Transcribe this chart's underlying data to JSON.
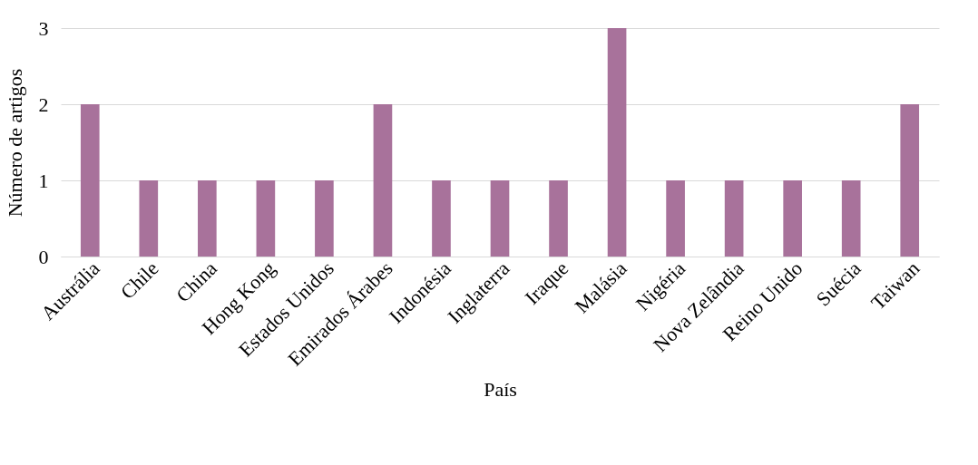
{
  "chart_data": {
    "type": "bar",
    "xlabel": "País",
    "ylabel": "Número de artigos",
    "categories": [
      "Austrália",
      "Chile",
      "China",
      "Hong Kong",
      "Estados Unidos",
      "Emirados Árabes",
      "Indonésia",
      "Inglaterra",
      "Iraque",
      "Malásia",
      "Nigéria",
      "Nova Zelândia",
      "Reino Unido",
      "Suécia",
      "Taiwan"
    ],
    "values": [
      2,
      1,
      1,
      1,
      1,
      2,
      1,
      1,
      1,
      3,
      1,
      1,
      1,
      1,
      2
    ],
    "color": "#a8729b",
    "ylim": [
      0,
      3
    ],
    "yticks": [
      0,
      1,
      2,
      3
    ],
    "grid": "y"
  }
}
